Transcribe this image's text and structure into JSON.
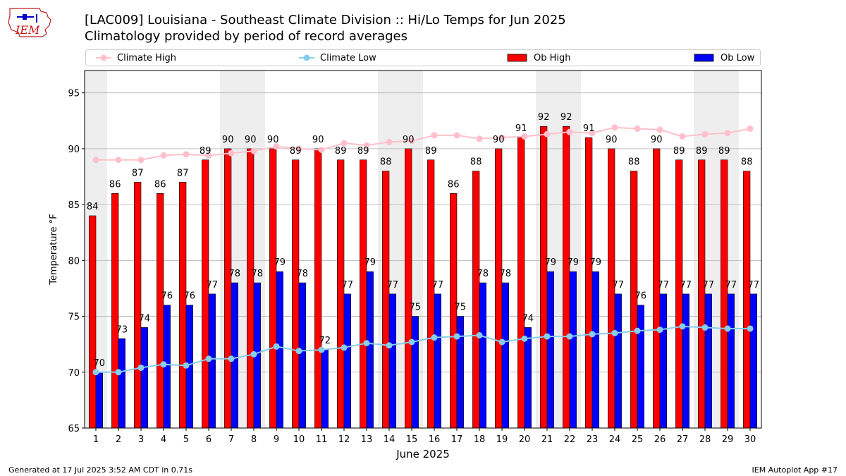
{
  "header": {
    "logo_text": "IEM",
    "title_line1": "[LAC009] Louisiana - Southeast Climate Division :: Hi/Lo Temps for Jun 2025",
    "title_line2": "Climatology provided by period of record averages"
  },
  "legend": {
    "items": [
      {
        "label": "Climate High",
        "kind": "line",
        "color": "#ffc0cb"
      },
      {
        "label": "Climate Low",
        "kind": "line",
        "color": "#87ceeb"
      },
      {
        "label": "Ob High",
        "kind": "bar",
        "color": "#ff0000"
      },
      {
        "label": "Ob Low",
        "kind": "bar",
        "color": "#0000ff"
      }
    ]
  },
  "footer": {
    "left": "Generated at 17 Jul 2025 3:52 AM CDT in 0.71s",
    "right": "IEM Autoplot App #17"
  },
  "chart_data": {
    "type": "bar",
    "xlabel": "June 2025",
    "ylabel": "Temperature °F",
    "ylim": [
      65,
      97
    ],
    "yticks": [
      65,
      70,
      75,
      80,
      85,
      90,
      95
    ],
    "grid": "horizontal",
    "legend_placement": "top",
    "weekend_days_shaded": [
      1,
      7,
      8,
      14,
      15,
      21,
      22,
      28,
      29
    ],
    "categories": [
      "1",
      "2",
      "3",
      "4",
      "5",
      "6",
      "7",
      "8",
      "9",
      "10",
      "11",
      "12",
      "13",
      "14",
      "15",
      "16",
      "17",
      "18",
      "19",
      "20",
      "21",
      "22",
      "23",
      "24",
      "25",
      "26",
      "27",
      "28",
      "29",
      "30"
    ],
    "series": [
      {
        "name": "Ob High",
        "kind": "bar",
        "color": "#ff0000",
        "values": [
          84,
          86,
          87,
          86,
          87,
          89,
          90,
          90,
          90,
          89,
          90,
          89,
          89,
          88,
          90,
          89,
          86,
          88,
          90,
          91,
          92,
          92,
          91,
          90,
          88,
          90,
          89,
          89,
          89,
          88
        ]
      },
      {
        "name": "Ob Low",
        "kind": "bar",
        "color": "#0000ff",
        "values": [
          70,
          73,
          74,
          76,
          76,
          77,
          78,
          78,
          79,
          78,
          72,
          77,
          79,
          77,
          75,
          77,
          75,
          78,
          78,
          74,
          79,
          79,
          79,
          77,
          76,
          77,
          77,
          77,
          77,
          77
        ]
      },
      {
        "name": "Climate High",
        "kind": "line",
        "color": "#ffc0cb",
        "values": [
          89.0,
          89.0,
          89.0,
          89.4,
          89.5,
          89.4,
          89.6,
          89.8,
          90.2,
          90.0,
          89.9,
          90.5,
          90.3,
          90.6,
          90.7,
          91.2,
          91.2,
          90.9,
          91.0,
          91.1,
          91.3,
          91.5,
          91.4,
          91.9,
          91.8,
          91.7,
          91.1,
          91.3,
          91.4,
          91.8
        ]
      },
      {
        "name": "Climate Low",
        "kind": "line",
        "color": "#87ceeb",
        "values": [
          70.0,
          70.0,
          70.4,
          70.7,
          70.6,
          71.2,
          71.2,
          71.6,
          72.3,
          71.9,
          72.0,
          72.2,
          72.6,
          72.4,
          72.7,
          73.1,
          73.2,
          73.3,
          72.7,
          73.0,
          73.2,
          73.2,
          73.4,
          73.5,
          73.7,
          73.8,
          74.1,
          74.0,
          73.9,
          73.9
        ]
      }
    ]
  }
}
